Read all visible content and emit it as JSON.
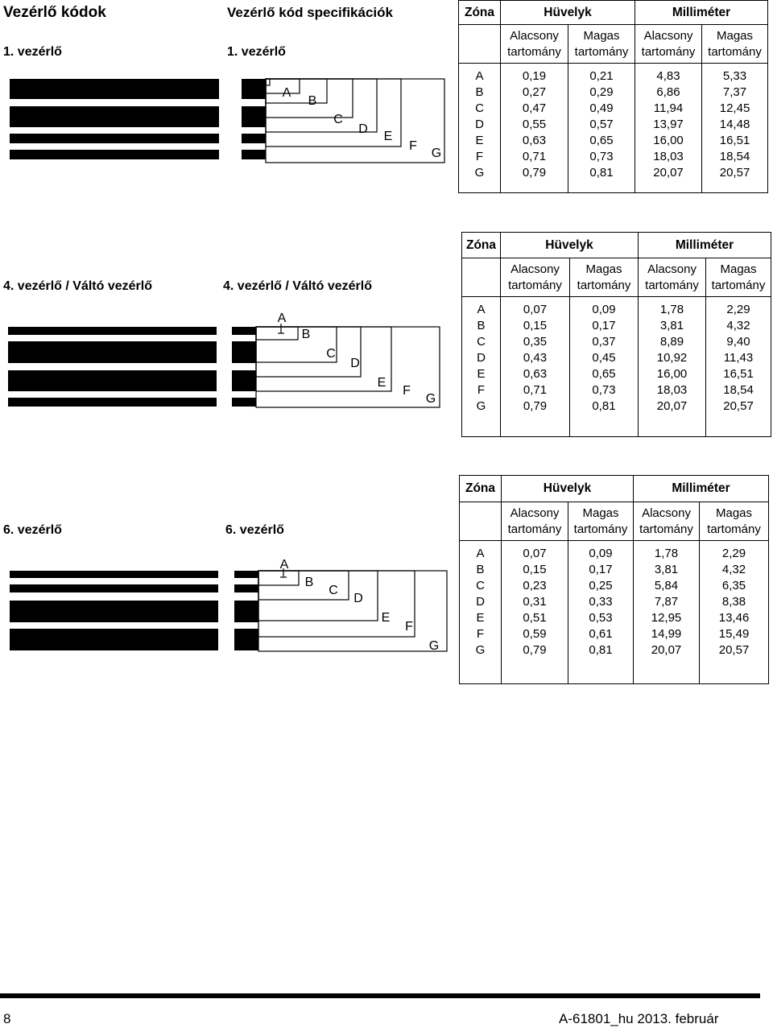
{
  "page": {
    "title": "Vezérlő kódok",
    "spec_title": "Vezérlő kód specifikációk",
    "page_number": "8",
    "footer_doc": "A-61801_hu 2013. február"
  },
  "header_labels": {
    "zone": "Zóna",
    "inch": "Hüvelyk",
    "mm": "Milliméter",
    "low": "Alacsony",
    "high": "Magas",
    "range": "tartomány"
  },
  "diagram_letters": [
    "A",
    "B",
    "C",
    "D",
    "E",
    "F",
    "G"
  ],
  "sections": [
    {
      "left_label": "1. vezérlő",
      "right_label": "1. vezérlő",
      "rows": [
        {
          "zone": "A",
          "in_low": "0,19",
          "in_high": "0,21",
          "mm_low": "4,83",
          "mm_high": "5,33"
        },
        {
          "zone": "B",
          "in_low": "0,27",
          "in_high": "0,29",
          "mm_low": "6,86",
          "mm_high": "7,37"
        },
        {
          "zone": "C",
          "in_low": "0,47",
          "in_high": "0,49",
          "mm_low": "11,94",
          "mm_high": "12,45"
        },
        {
          "zone": "D",
          "in_low": "0,55",
          "in_high": "0,57",
          "mm_low": "13,97",
          "mm_high": "14,48"
        },
        {
          "zone": "E",
          "in_low": "0,63",
          "in_high": "0,65",
          "mm_low": "16,00",
          "mm_high": "16,51"
        },
        {
          "zone": "F",
          "in_low": "0,71",
          "in_high": "0,73",
          "mm_low": "18,03",
          "mm_high": "18,54"
        },
        {
          "zone": "G",
          "in_low": "0,79",
          "in_high": "0,81",
          "mm_low": "20,07",
          "mm_high": "20,57"
        }
      ]
    },
    {
      "left_label": "4. vezérlő / Váltó vezérlő",
      "right_label": "4. vezérlő / Váltó vezérlő",
      "rows": [
        {
          "zone": "A",
          "in_low": "0,07",
          "in_high": "0,09",
          "mm_low": "1,78",
          "mm_high": "2,29"
        },
        {
          "zone": "B",
          "in_low": "0,15",
          "in_high": "0,17",
          "mm_low": "3,81",
          "mm_high": "4,32"
        },
        {
          "zone": "C",
          "in_low": "0,35",
          "in_high": "0,37",
          "mm_low": "8,89",
          "mm_high": "9,40"
        },
        {
          "zone": "D",
          "in_low": "0,43",
          "in_high": "0,45",
          "mm_low": "10,92",
          "mm_high": "11,43"
        },
        {
          "zone": "E",
          "in_low": "0,63",
          "in_high": "0,65",
          "mm_low": "16,00",
          "mm_high": "16,51"
        },
        {
          "zone": "F",
          "in_low": "0,71",
          "in_high": "0,73",
          "mm_low": "18,03",
          "mm_high": "18,54"
        },
        {
          "zone": "G",
          "in_low": "0,79",
          "in_high": "0,81",
          "mm_low": "20,07",
          "mm_high": "20,57"
        }
      ]
    },
    {
      "left_label": "6. vezérlő",
      "right_label": "6. vezérlő",
      "rows": [
        {
          "zone": "A",
          "in_low": "0,07",
          "in_high": "0,09",
          "mm_low": "1,78",
          "mm_high": "2,29"
        },
        {
          "zone": "B",
          "in_low": "0,15",
          "in_high": "0,17",
          "mm_low": "3,81",
          "mm_high": "4,32"
        },
        {
          "zone": "C",
          "in_low": "0,23",
          "in_high": "0,25",
          "mm_low": "5,84",
          "mm_high": "6,35"
        },
        {
          "zone": "D",
          "in_low": "0,31",
          "in_high": "0,33",
          "mm_low": "7,87",
          "mm_high": "8,38"
        },
        {
          "zone": "E",
          "in_low": "0,51",
          "in_high": "0,53",
          "mm_low": "12,95",
          "mm_high": "13,46"
        },
        {
          "zone": "F",
          "in_low": "0,59",
          "in_high": "0,61",
          "mm_low": "14,99",
          "mm_high": "15,49"
        },
        {
          "zone": "G",
          "in_low": "0,79",
          "in_high": "0,81",
          "mm_low": "20,07",
          "mm_high": "20,57"
        }
      ]
    }
  ]
}
